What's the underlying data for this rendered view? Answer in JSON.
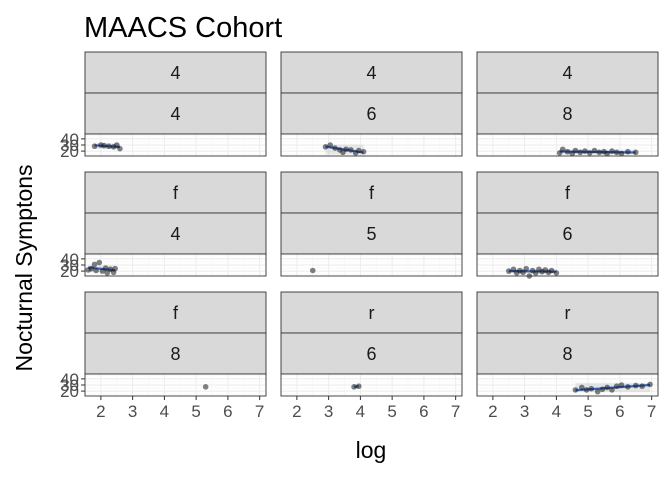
{
  "chart_data": {
    "type": "scatter",
    "title": "MAACS Cohort",
    "xlabel": "log",
    "ylabel": "Nocturnal Symptons",
    "xlim": [
      1.5,
      7.2
    ],
    "ylim": [
      12,
      48
    ],
    "x_ticks": [
      2,
      3,
      4,
      5,
      6,
      7
    ],
    "y_ticks": [
      20,
      30,
      40
    ],
    "grid": true,
    "smooth": "lm",
    "colors": {
      "point": "#1a1a1a",
      "smooth_line": "#3366cc",
      "strip_bg": "#d9d9d9",
      "panel_border": "#333333",
      "grid_major": "#ebebeb",
      "grid_minor": "#f5f5f5"
    },
    "panels": [
      {
        "row_label": "4",
        "col_label": "4",
        "points": [
          [
            1.8,
            28
          ],
          [
            2.0,
            30
          ],
          [
            2.1,
            29
          ],
          [
            2.25,
            28
          ],
          [
            2.4,
            27
          ],
          [
            2.5,
            30
          ],
          [
            2.6,
            24
          ]
        ]
      },
      {
        "row_label": "4",
        "col_label": "6",
        "points": [
          [
            2.9,
            27
          ],
          [
            3.05,
            30
          ],
          [
            3.2,
            25
          ],
          [
            3.35,
            22
          ],
          [
            3.45,
            18
          ],
          [
            3.55,
            23
          ],
          [
            3.7,
            22
          ],
          [
            3.85,
            17
          ],
          [
            3.95,
            21
          ],
          [
            4.1,
            19
          ]
        ]
      },
      {
        "row_label": "4",
        "col_label": "8",
        "points": [
          [
            4.1,
            17
          ],
          [
            4.2,
            23
          ],
          [
            4.35,
            19
          ],
          [
            4.5,
            16
          ],
          [
            4.6,
            21
          ],
          [
            4.75,
            18
          ],
          [
            4.9,
            20
          ],
          [
            5.05,
            17
          ],
          [
            5.2,
            21
          ],
          [
            5.35,
            18
          ],
          [
            5.5,
            19
          ],
          [
            5.6,
            16
          ],
          [
            5.75,
            20
          ],
          [
            5.9,
            18
          ],
          [
            6.05,
            16
          ],
          [
            6.25,
            19
          ],
          [
            6.5,
            18
          ]
        ]
      },
      {
        "row_label": "f",
        "col_label": "4",
        "points": [
          [
            1.6,
            22
          ],
          [
            1.7,
            24
          ],
          [
            1.8,
            31
          ],
          [
            1.85,
            21
          ],
          [
            1.95,
            34
          ],
          [
            2.05,
            20
          ],
          [
            2.15,
            25
          ],
          [
            2.2,
            17
          ],
          [
            2.3,
            23
          ],
          [
            2.4,
            18
          ],
          [
            2.45,
            24
          ]
        ]
      },
      {
        "row_label": "f",
        "col_label": "5",
        "points": [
          [
            2.5,
            21
          ]
        ]
      },
      {
        "row_label": "f",
        "col_label": "6",
        "points": [
          [
            2.5,
            20
          ],
          [
            2.65,
            23
          ],
          [
            2.75,
            17
          ],
          [
            2.85,
            21
          ],
          [
            2.95,
            18
          ],
          [
            3.05,
            24
          ],
          [
            3.15,
            12
          ],
          [
            3.25,
            21
          ],
          [
            3.35,
            17
          ],
          [
            3.45,
            23
          ],
          [
            3.55,
            19
          ],
          [
            3.65,
            22
          ],
          [
            3.75,
            18
          ],
          [
            3.85,
            21
          ],
          [
            4.0,
            17
          ]
        ]
      },
      {
        "row_label": "f",
        "col_label": "8",
        "points": [
          [
            5.3,
            27
          ]
        ]
      },
      {
        "row_label": "r",
        "col_label": "6",
        "points": [
          [
            3.8,
            27
          ],
          [
            3.95,
            28
          ]
        ]
      },
      {
        "row_label": "r",
        "col_label": "8",
        "points": [
          [
            4.6,
            22
          ],
          [
            4.8,
            26
          ],
          [
            4.95,
            22
          ],
          [
            5.1,
            24
          ],
          [
            5.3,
            19
          ],
          [
            5.45,
            23
          ],
          [
            5.6,
            26
          ],
          [
            5.75,
            22
          ],
          [
            5.9,
            28
          ],
          [
            6.05,
            30
          ],
          [
            6.25,
            27
          ],
          [
            6.5,
            29
          ],
          [
            6.7,
            28
          ],
          [
            6.95,
            31
          ]
        ]
      }
    ]
  }
}
